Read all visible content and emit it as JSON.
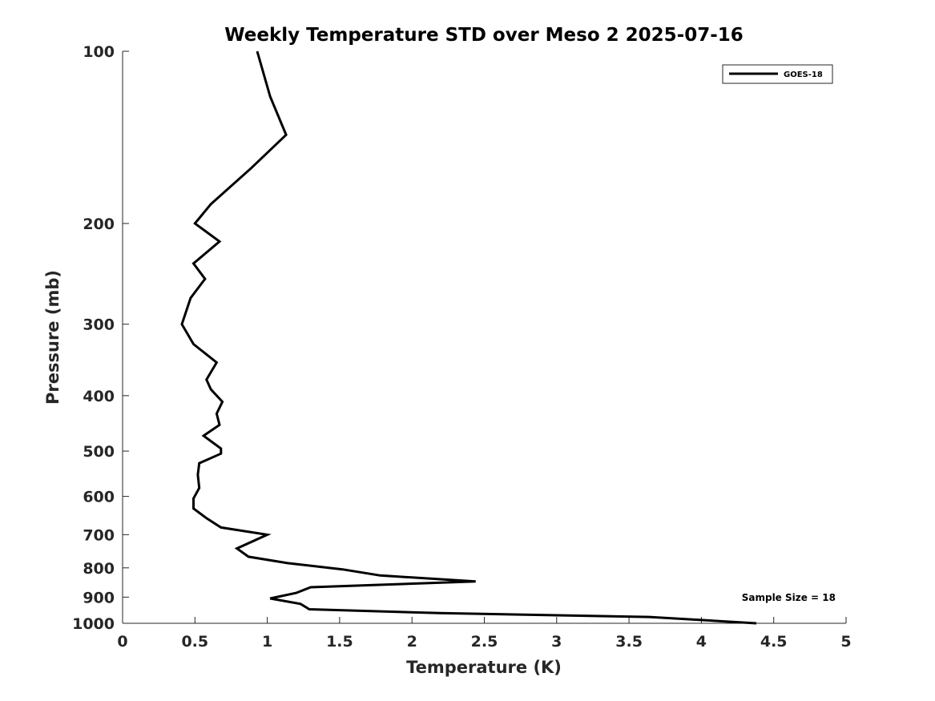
{
  "chart_data": {
    "type": "line",
    "title": "Weekly Temperature STD over Meso 2 2025-07-16",
    "xlabel": "Temperature (K)",
    "ylabel": "Pressure (mb)",
    "xlim": [
      0,
      5
    ],
    "ylim": [
      100,
      1000
    ],
    "y_scale": "log",
    "y_reversed": true,
    "x_ticks": [
      0,
      0.5,
      1,
      1.5,
      2,
      2.5,
      3,
      3.5,
      4,
      4.5,
      5
    ],
    "x_tick_labels": [
      "0",
      "0.5",
      "1",
      "1.5",
      "2",
      "2.5",
      "3",
      "3.5",
      "4",
      "4.5",
      "5"
    ],
    "y_ticks": [
      100,
      200,
      300,
      400,
      500,
      600,
      700,
      800,
      900,
      1000
    ],
    "y_tick_labels": [
      "100",
      "200",
      "300",
      "400",
      "500",
      "600",
      "700",
      "800",
      "900",
      "1000"
    ],
    "grid": false,
    "legend_position": "top-right",
    "series": [
      {
        "name": "GOES-18",
        "color": "#000000",
        "x": [
          0.93,
          1.02,
          1.13,
          0.89,
          0.61,
          0.5,
          0.67,
          0.49,
          0.57,
          0.47,
          0.41,
          0.49,
          0.65,
          0.58,
          0.61,
          0.69,
          0.65,
          0.67,
          0.56,
          0.68,
          0.68,
          0.53,
          0.52,
          0.53,
          0.49,
          0.49,
          0.58,
          0.68,
          1.0,
          0.79,
          0.87,
          1.14,
          1.52,
          1.78,
          2.44,
          1.3,
          1.2,
          1.02,
          1.23,
          1.29,
          2.19,
          3.64,
          4.38
        ],
        "y": [
          100,
          120,
          140,
          160,
          185,
          200,
          215,
          235,
          250,
          270,
          300,
          325,
          350,
          375,
          390,
          410,
          430,
          450,
          470,
          495,
          505,
          525,
          550,
          580,
          605,
          630,
          655,
          680,
          700,
          740,
          765,
          785,
          805,
          825,
          845,
          865,
          885,
          905,
          925,
          945,
          960,
          975,
          1000
        ]
      }
    ],
    "annotations": [
      "Sample Size = 18"
    ]
  }
}
